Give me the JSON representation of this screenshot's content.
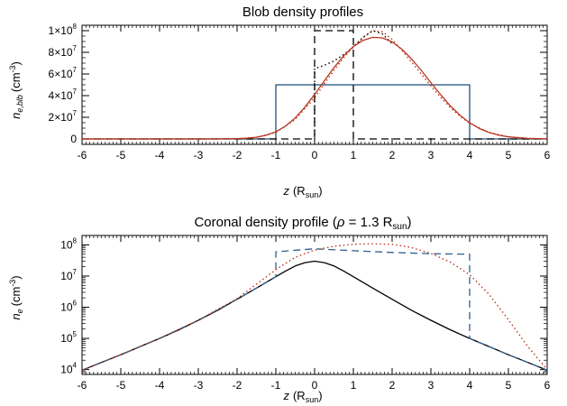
{
  "chart_data": [
    {
      "type": "line",
      "title": "Blob density profiles",
      "xlabel": {
        "main": "z",
        "unit": "R",
        "unit_sub": "sun"
      },
      "ylabel": {
        "main": "n",
        "sub": "e,blb",
        "unit": "(cm",
        "unit_sup": "-3",
        "unit_close": ")"
      },
      "xlim": [
        -6,
        6
      ],
      "ylim": [
        -5000000,
        105000000
      ],
      "yscale": "linear",
      "grid": false,
      "x_ticks": [
        "-6",
        "-5",
        "-4",
        "-3",
        "-2",
        "-1",
        "0",
        "1",
        "2",
        "3",
        "4",
        "5",
        "6"
      ],
      "y_ticks": [
        {
          "value": 0,
          "mantissa": "0",
          "exp": ""
        },
        {
          "value": 20000000,
          "mantissa": "2×10",
          "exp": "7"
        },
        {
          "value": 40000000,
          "mantissa": "4×10",
          "exp": "7"
        },
        {
          "value": 60000000,
          "mantissa": "6×10",
          "exp": "7"
        },
        {
          "value": 80000000,
          "mantissa": "8×10",
          "exp": "7"
        },
        {
          "value": 100000000,
          "mantissa": "1×10",
          "exp": "8"
        }
      ],
      "series": [
        {
          "style": "solid",
          "color": "#1f4f7a",
          "x": [
            -6,
            -1,
            -1,
            4,
            4,
            6
          ],
          "y": [
            0,
            0,
            50000000,
            50000000,
            0,
            0
          ]
        },
        {
          "style": "dashed",
          "color": "#000000",
          "x": [
            -6,
            0,
            0,
            1,
            1,
            6
          ],
          "y": [
            0,
            0,
            100000000,
            100000000,
            0,
            0
          ]
        },
        {
          "style": "dotted",
          "color": "#000000",
          "x": [
            0,
            0,
            0.25,
            0.5,
            0.75,
            1.0,
            1.25,
            1.5,
            1.75,
            2.0
          ],
          "y": [
            0,
            65000000,
            68000000,
            72000000,
            78000000,
            85000000,
            94000000,
            100000000,
            97000000,
            88000000
          ]
        },
        {
          "style": "solid",
          "color": "#b8361e",
          "x": [
            -6,
            -5.5,
            -5,
            -4.5,
            -4,
            -3.5,
            -3,
            -2.5,
            -2,
            -1.75,
            -1.5,
            -1.25,
            -1,
            -0.75,
            -0.5,
            -0.25,
            0,
            0.25,
            0.5,
            0.75,
            1,
            1.25,
            1.5,
            1.75,
            2,
            2.25,
            2.5,
            2.75,
            3,
            3.25,
            3.5,
            3.75,
            4,
            4.25,
            4.5,
            4.75,
            5,
            5.5,
            6
          ],
          "y": [
            0,
            0,
            0,
            0,
            0,
            0,
            0,
            0,
            300000,
            700000,
            1600000,
            3400000,
            6600000,
            11800000,
            19400000,
            29400000,
            41100000,
            53700000,
            65900000,
            76800000,
            85300000,
            91100000,
            93800000,
            93300000,
            89600000,
            82900000,
            73900000,
            63300000,
            52000000,
            40900000,
            30600000,
            21900000,
            14900000,
            9700000,
            5900000,
            3400000,
            1900000,
            500000,
            100000
          ]
        },
        {
          "style": "dotted",
          "color": "#b8361e",
          "x": [
            -6,
            -5,
            -4,
            -3,
            -2,
            -1.5,
            -1,
            -0.5,
            0,
            0.25,
            0.5,
            0.75,
            1,
            1.25,
            1.5,
            1.75,
            2,
            2.25,
            2.5,
            2.75,
            3,
            3.25,
            3.5,
            3.75,
            4,
            4.5,
            5,
            5.5,
            6
          ],
          "y": [
            0,
            0,
            0,
            0,
            200000,
            1500000,
            6000000,
            18000000,
            38000000,
            51000000,
            63500000,
            75000000,
            85000000,
            93500000,
            100000000,
            99000000,
            92000000,
            82000000,
            71000000,
            60000000,
            49000000,
            38500000,
            29000000,
            21000000,
            14500000,
            6000000,
            2000000,
            500000,
            100000
          ]
        }
      ]
    },
    {
      "type": "line",
      "title": {
        "main": "Coronal density profile (",
        "greek": "ρ",
        "eq": " = 1.3 R",
        "sub": "sun",
        "close": ")"
      },
      "xlabel": {
        "main": "z",
        "unit": "R",
        "unit_sub": "sun"
      },
      "ylabel": {
        "main": "n",
        "sub": "e",
        "unit": "(cm",
        "unit_sup": "-3",
        "unit_close": ")"
      },
      "xlim": [
        -6,
        6
      ],
      "ylim": [
        7000,
        200000000
      ],
      "yscale": "log",
      "grid": false,
      "x_ticks": [
        "-6",
        "-5",
        "-4",
        "-3",
        "-2",
        "-1",
        "0",
        "1",
        "2",
        "3",
        "4",
        "5",
        "6"
      ],
      "y_ticks": [
        {
          "value": 10000,
          "mantissa": "10",
          "exp": "4"
        },
        {
          "value": 100000,
          "mantissa": "10",
          "exp": "5"
        },
        {
          "value": 1000000,
          "mantissa": "10",
          "exp": "6"
        },
        {
          "value": 10000000,
          "mantissa": "10",
          "exp": "7"
        },
        {
          "value": 100000000,
          "mantissa": "10",
          "exp": "8"
        }
      ],
      "series": [
        {
          "style": "solid",
          "color": "#000000",
          "x": [
            -6,
            -5.5,
            -5,
            -4.5,
            -4,
            -3.5,
            -3,
            -2.5,
            -2,
            -1.5,
            -1,
            -0.75,
            -0.5,
            -0.25,
            0,
            0.25,
            0.5,
            0.75,
            1,
            1.5,
            2,
            2.5,
            3,
            3.5,
            4,
            4.5,
            5,
            5.5,
            6
          ],
          "y": [
            9500,
            17000,
            30000,
            55000,
            100000,
            190000,
            380000,
            800000,
            1800000,
            4100000,
            9500000,
            14500000,
            21000000,
            27000000,
            30000000,
            27000000,
            21000000,
            14500000,
            9500000,
            4100000,
            1800000,
            800000,
            380000,
            190000,
            100000,
            55000,
            30000,
            17000,
            9500
          ]
        },
        {
          "style": "dashed",
          "color": "#2c5f8f",
          "x": [
            -6,
            -5,
            -4,
            -3,
            -2,
            -1.5,
            -1,
            -1,
            0,
            1,
            2,
            3,
            4,
            4,
            4.5,
            5,
            5.5,
            6
          ],
          "y": [
            9500,
            30000,
            100000,
            380000,
            1800000,
            4100000,
            9500000,
            60000000,
            75000000,
            65000000,
            57000000,
            52000000,
            50000000,
            100000,
            55000,
            30000,
            17000,
            9500
          ]
        },
        {
          "style": "dotted",
          "color": "#b8361e",
          "x": [
            -6,
            -5,
            -4,
            -3,
            -2,
            -1.5,
            -1,
            -0.5,
            0,
            0.5,
            1,
            1.5,
            2,
            2.5,
            3,
            3.5,
            4,
            4.5,
            5,
            5.5,
            6
          ],
          "y": [
            9500,
            30000,
            100000,
            380000,
            1900000,
            5500000,
            16000000,
            40000000,
            68000000,
            90000000,
            104000000,
            108000000,
            104000000,
            82000000,
            53000000,
            28000000,
            11000000,
            2600000,
            400000,
            55000,
            10000
          ]
        }
      ]
    }
  ]
}
